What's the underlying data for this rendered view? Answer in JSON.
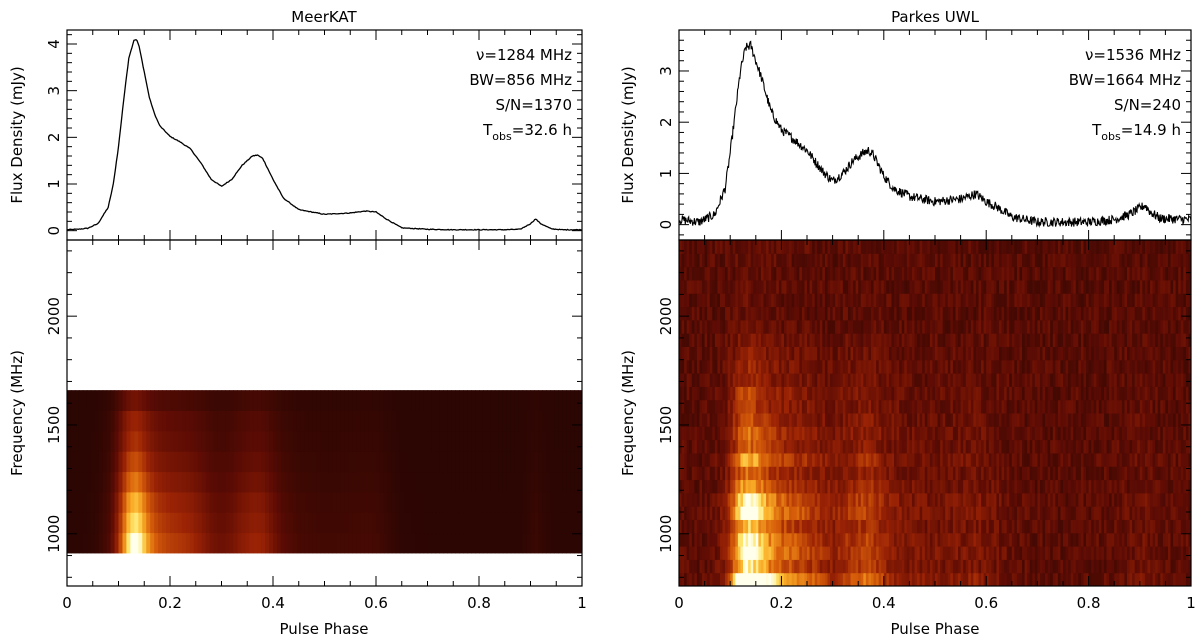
{
  "chart_data": [
    {
      "type": "line",
      "panel": "left-top",
      "title": "MeerKAT",
      "xlabel": "",
      "ylabel": "Flux Density (mJy)",
      "xlim": [
        0,
        1
      ],
      "ylim": [
        -0.2,
        4.3
      ],
      "x_ticks": [
        0,
        0.2,
        0.4,
        0.6,
        0.8,
        1
      ],
      "y_ticks": [
        0,
        1,
        2,
        3,
        4
      ],
      "y_tick_labels": [
        "0",
        "1",
        "2",
        "3",
        "4"
      ],
      "annotation": {
        "nu": "ν=1284 MHz",
        "bw": "BW=856 MHz",
        "sn": "S/N=1370",
        "t_prefix": "T",
        "t_sub": "obs",
        "t_val": "=32.6 h"
      },
      "series": [
        {
          "name": "MeerKAT profile",
          "x": [
            0.0,
            0.02,
            0.04,
            0.06,
            0.08,
            0.09,
            0.1,
            0.11,
            0.12,
            0.13,
            0.135,
            0.14,
            0.15,
            0.16,
            0.17,
            0.18,
            0.2,
            0.22,
            0.24,
            0.26,
            0.28,
            0.3,
            0.32,
            0.34,
            0.36,
            0.37,
            0.38,
            0.4,
            0.42,
            0.45,
            0.5,
            0.55,
            0.58,
            0.6,
            0.62,
            0.65,
            0.7,
            0.75,
            0.8,
            0.85,
            0.88,
            0.9,
            0.91,
            0.92,
            0.94,
            0.96,
            1.0
          ],
          "y": [
            0.02,
            0.03,
            0.05,
            0.15,
            0.5,
            1.0,
            1.8,
            2.8,
            3.7,
            4.08,
            4.1,
            3.95,
            3.4,
            2.85,
            2.5,
            2.25,
            2.02,
            1.9,
            1.75,
            1.45,
            1.1,
            0.95,
            1.1,
            1.4,
            1.6,
            1.62,
            1.55,
            1.1,
            0.7,
            0.45,
            0.35,
            0.38,
            0.42,
            0.4,
            0.25,
            0.06,
            0.03,
            0.02,
            0.02,
            0.02,
            0.03,
            0.15,
            0.25,
            0.15,
            0.04,
            0.02,
            0.02
          ]
        }
      ]
    },
    {
      "type": "heatmap",
      "panel": "left-bottom",
      "xlabel": "Pulse Phase",
      "ylabel": "Frequency (MHz)",
      "xlim": [
        0,
        1
      ],
      "ylim": [
        760,
        2350
      ],
      "x_ticks": [
        0,
        0.2,
        0.4,
        0.6,
        0.8,
        1
      ],
      "x_tick_labels": [
        "0",
        "0.2",
        "0.4",
        "0.6",
        "0.8",
        "1"
      ],
      "y_ticks": [
        1000,
        1500,
        2000
      ],
      "y_tick_labels": [
        "1000",
        "1500",
        "2000"
      ],
      "freq_coverage_mhz": [
        912,
        1660
      ],
      "channels": 8
    },
    {
      "type": "line",
      "panel": "right-top",
      "title": "Parkes UWL",
      "xlabel": "",
      "ylabel": "Flux Density (mJy)",
      "xlim": [
        0,
        1
      ],
      "ylim": [
        -0.3,
        3.8
      ],
      "x_ticks": [
        0,
        0.2,
        0.4,
        0.6,
        0.8,
        1
      ],
      "y_ticks": [
        0,
        1,
        2,
        3
      ],
      "y_tick_labels": [
        "0",
        "1",
        "2",
        "3"
      ],
      "annotation": {
        "nu": "ν=1536 MHz",
        "bw": "BW=1664 MHz",
        "sn": "S/N=240",
        "t_prefix": "T",
        "t_sub": "obs",
        "t_val": "=14.9 h"
      },
      "series": [
        {
          "name": "Parkes profile",
          "x": [
            0.0,
            0.04,
            0.07,
            0.09,
            0.1,
            0.11,
            0.12,
            0.13,
            0.14,
            0.15,
            0.16,
            0.17,
            0.18,
            0.2,
            0.22,
            0.25,
            0.28,
            0.3,
            0.32,
            0.34,
            0.36,
            0.37,
            0.38,
            0.4,
            0.42,
            0.45,
            0.5,
            0.55,
            0.58,
            0.6,
            0.62,
            0.65,
            0.7,
            0.75,
            0.8,
            0.85,
            0.88,
            0.9,
            0.91,
            0.92,
            0.94,
            1.0
          ],
          "y": [
            0.1,
            0.05,
            0.2,
            0.7,
            1.4,
            2.2,
            3.0,
            3.45,
            3.5,
            3.2,
            2.9,
            2.55,
            2.2,
            1.85,
            1.7,
            1.45,
            1.05,
            0.85,
            1.0,
            1.25,
            1.4,
            1.45,
            1.35,
            0.95,
            0.7,
            0.55,
            0.45,
            0.5,
            0.6,
            0.45,
            0.35,
            0.15,
            0.05,
            0.05,
            0.05,
            0.1,
            0.2,
            0.32,
            0.38,
            0.25,
            0.12,
            0.1
          ]
        }
      ]
    },
    {
      "type": "heatmap",
      "panel": "right-bottom",
      "xlabel": "Pulse Phase",
      "ylabel": "Frequency (MHz)",
      "xlim": [
        0,
        1
      ],
      "ylim": [
        760,
        2350
      ],
      "x_ticks": [
        0,
        0.2,
        0.4,
        0.6,
        0.8,
        1
      ],
      "x_tick_labels": [
        "0",
        "0.2",
        "0.4",
        "0.6",
        "0.8",
        "1"
      ],
      "y_ticks": [
        1000,
        1500,
        2000
      ],
      "y_tick_labels": [
        "1000",
        "1500",
        "2000"
      ],
      "freq_coverage_mhz": [
        760,
        2350
      ],
      "channels": 26
    }
  ]
}
